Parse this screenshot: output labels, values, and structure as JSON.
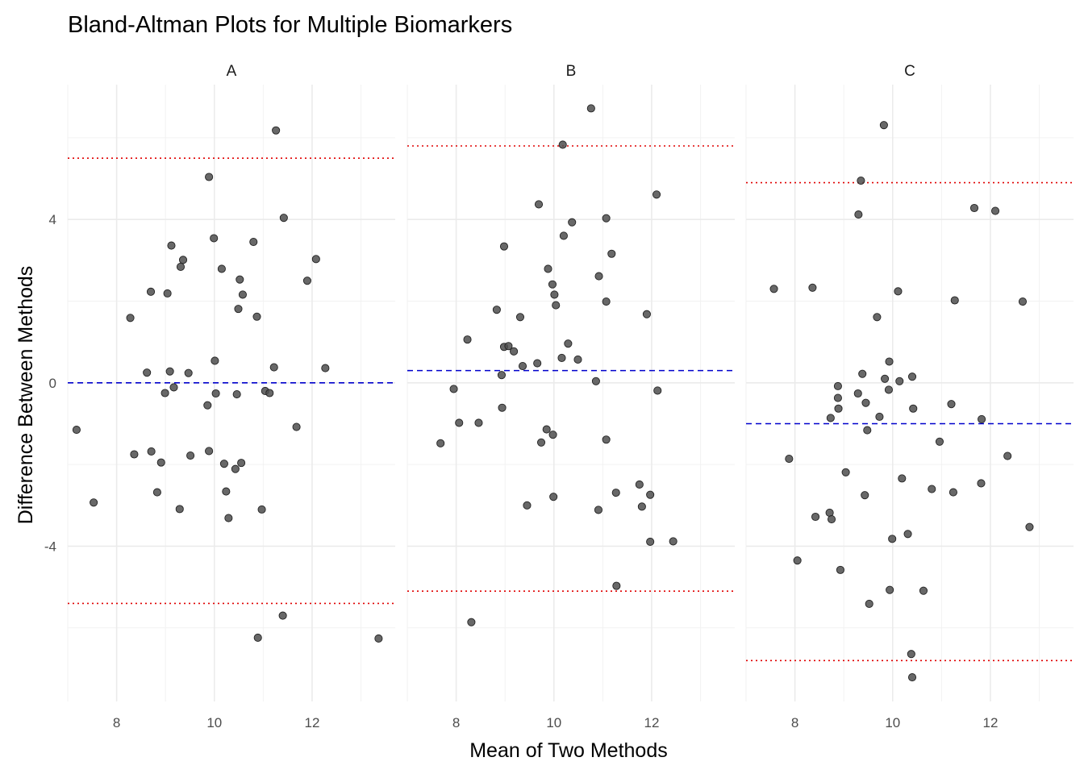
{
  "chart_data": {
    "type": "scatter",
    "title": "Bland-Altman Plots for Multiple Biomarkers",
    "xlabel": "Mean of Two Methods",
    "ylabel": "Difference Between Methods",
    "xlim": [
      7.0,
      13.7
    ],
    "ylim": [
      -7.8,
      7.3
    ],
    "x_ticks": [
      8,
      10,
      12
    ],
    "y_ticks": [
      -4,
      0,
      4
    ],
    "grid": true,
    "colors": {
      "points": "#4d4d4d",
      "mean_line": "#0000cc",
      "loa_line": "#e00000"
    },
    "panels": [
      {
        "name": "A",
        "mean_diff": 0.0,
        "loa_upper": 5.5,
        "loa_lower": -5.4,
        "points": [
          [
            7.18,
            -1.15
          ],
          [
            7.53,
            -2.93
          ],
          [
            8.28,
            1.59
          ],
          [
            8.36,
            -1.75
          ],
          [
            8.62,
            0.25
          ],
          [
            8.7,
            2.23
          ],
          [
            8.71,
            -1.68
          ],
          [
            8.83,
            -2.68
          ],
          [
            8.91,
            -1.95
          ],
          [
            8.99,
            -0.25
          ],
          [
            9.04,
            2.19
          ],
          [
            9.09,
            0.28
          ],
          [
            9.12,
            3.36
          ],
          [
            9.17,
            -0.11
          ],
          [
            9.29,
            -3.09
          ],
          [
            9.31,
            2.84
          ],
          [
            9.36,
            3.01
          ],
          [
            9.47,
            0.24
          ],
          [
            9.51,
            -1.78
          ],
          [
            9.86,
            -0.55
          ],
          [
            9.89,
            5.04
          ],
          [
            9.89,
            -1.67
          ],
          [
            9.99,
            3.54
          ],
          [
            10.01,
            0.54
          ],
          [
            10.03,
            -0.26
          ],
          [
            10.15,
            2.79
          ],
          [
            10.2,
            -1.98
          ],
          [
            10.24,
            -2.66
          ],
          [
            10.29,
            -3.31
          ],
          [
            10.43,
            -2.11
          ],
          [
            10.46,
            -0.28
          ],
          [
            10.49,
            1.81
          ],
          [
            10.52,
            2.53
          ],
          [
            10.55,
            -1.96
          ],
          [
            10.58,
            2.16
          ],
          [
            10.8,
            3.45
          ],
          [
            10.87,
            1.62
          ],
          [
            10.89,
            -6.24
          ],
          [
            10.97,
            -3.1
          ],
          [
            11.04,
            -0.2
          ],
          [
            11.13,
            -0.25
          ],
          [
            11.22,
            0.38
          ],
          [
            11.26,
            6.18
          ],
          [
            11.4,
            -5.7
          ],
          [
            11.42,
            4.04
          ],
          [
            11.68,
            -1.08
          ],
          [
            11.9,
            2.5
          ],
          [
            12.08,
            3.03
          ],
          [
            12.27,
            0.36
          ],
          [
            13.36,
            -6.26
          ]
        ]
      },
      {
        "name": "B",
        "mean_diff": 0.3,
        "loa_upper": 5.8,
        "loa_lower": -5.1,
        "points": [
          [
            7.68,
            -1.48
          ],
          [
            7.95,
            -0.15
          ],
          [
            8.06,
            -0.98
          ],
          [
            8.23,
            1.06
          ],
          [
            8.31,
            -5.86
          ],
          [
            8.46,
            -0.98
          ],
          [
            8.83,
            1.79
          ],
          [
            8.93,
            0.19
          ],
          [
            8.94,
            -0.61
          ],
          [
            8.98,
            3.34
          ],
          [
            8.98,
            0.88
          ],
          [
            9.07,
            0.9
          ],
          [
            9.18,
            0.77
          ],
          [
            9.31,
            1.61
          ],
          [
            9.36,
            0.41
          ],
          [
            9.45,
            -3.0
          ],
          [
            9.66,
            0.48
          ],
          [
            9.69,
            4.37
          ],
          [
            9.74,
            -1.46
          ],
          [
            9.85,
            -1.14
          ],
          [
            9.88,
            2.79
          ],
          [
            9.97,
            2.41
          ],
          [
            9.98,
            -1.27
          ],
          [
            9.99,
            -2.79
          ],
          [
            10.01,
            2.16
          ],
          [
            10.04,
            1.9
          ],
          [
            10.16,
            0.61
          ],
          [
            10.18,
            5.83
          ],
          [
            10.2,
            3.6
          ],
          [
            10.29,
            0.96
          ],
          [
            10.37,
            3.93
          ],
          [
            10.49,
            0.57
          ],
          [
            10.76,
            6.72
          ],
          [
            10.86,
            0.04
          ],
          [
            10.91,
            -3.11
          ],
          [
            10.92,
            2.61
          ],
          [
            11.07,
            4.03
          ],
          [
            11.07,
            1.99
          ],
          [
            11.07,
            -1.39
          ],
          [
            11.18,
            3.16
          ],
          [
            11.27,
            -2.69
          ],
          [
            11.28,
            -4.97
          ],
          [
            11.75,
            -2.49
          ],
          [
            11.8,
            -3.03
          ],
          [
            11.9,
            1.68
          ],
          [
            11.97,
            -2.74
          ],
          [
            11.97,
            -3.89
          ],
          [
            12.1,
            4.61
          ],
          [
            12.12,
            -0.19
          ],
          [
            12.44,
            -3.88
          ]
        ]
      },
      {
        "name": "C",
        "mean_diff": -1.0,
        "loa_upper": 4.9,
        "loa_lower": -6.8,
        "points": [
          [
            7.57,
            2.3
          ],
          [
            7.88,
            -1.86
          ],
          [
            8.05,
            -4.35
          ],
          [
            8.36,
            2.33
          ],
          [
            8.42,
            -3.28
          ],
          [
            8.71,
            -3.18
          ],
          [
            8.73,
            -0.86
          ],
          [
            8.75,
            -3.34
          ],
          [
            8.88,
            -0.08
          ],
          [
            8.88,
            -0.37
          ],
          [
            8.89,
            -0.63
          ],
          [
            8.93,
            -4.58
          ],
          [
            9.04,
            -2.19
          ],
          [
            9.29,
            -0.26
          ],
          [
            9.3,
            4.12
          ],
          [
            9.35,
            4.95
          ],
          [
            9.38,
            0.22
          ],
          [
            9.43,
            -2.75
          ],
          [
            9.45,
            -0.49
          ],
          [
            9.48,
            -1.16
          ],
          [
            9.52,
            -5.41
          ],
          [
            9.68,
            1.61
          ],
          [
            9.73,
            -0.83
          ],
          [
            9.82,
            6.31
          ],
          [
            9.84,
            0.1
          ],
          [
            9.92,
            -0.17
          ],
          [
            9.93,
            0.52
          ],
          [
            9.94,
            -5.07
          ],
          [
            9.99,
            -3.82
          ],
          [
            10.11,
            2.24
          ],
          [
            10.14,
            0.04
          ],
          [
            10.19,
            -2.34
          ],
          [
            10.31,
            -3.7
          ],
          [
            10.38,
            -6.64
          ],
          [
            10.4,
            0.15
          ],
          [
            10.4,
            -7.21
          ],
          [
            10.42,
            -0.63
          ],
          [
            10.63,
            -5.09
          ],
          [
            10.8,
            -2.6
          ],
          [
            10.96,
            -1.44
          ],
          [
            11.2,
            -0.52
          ],
          [
            11.24,
            -2.68
          ],
          [
            11.27,
            2.02
          ],
          [
            11.67,
            4.28
          ],
          [
            11.81,
            -2.46
          ],
          [
            11.82,
            -0.89
          ],
          [
            12.1,
            4.21
          ],
          [
            12.35,
            -1.79
          ],
          [
            12.66,
            1.99
          ],
          [
            12.8,
            -3.53
          ]
        ]
      }
    ]
  }
}
